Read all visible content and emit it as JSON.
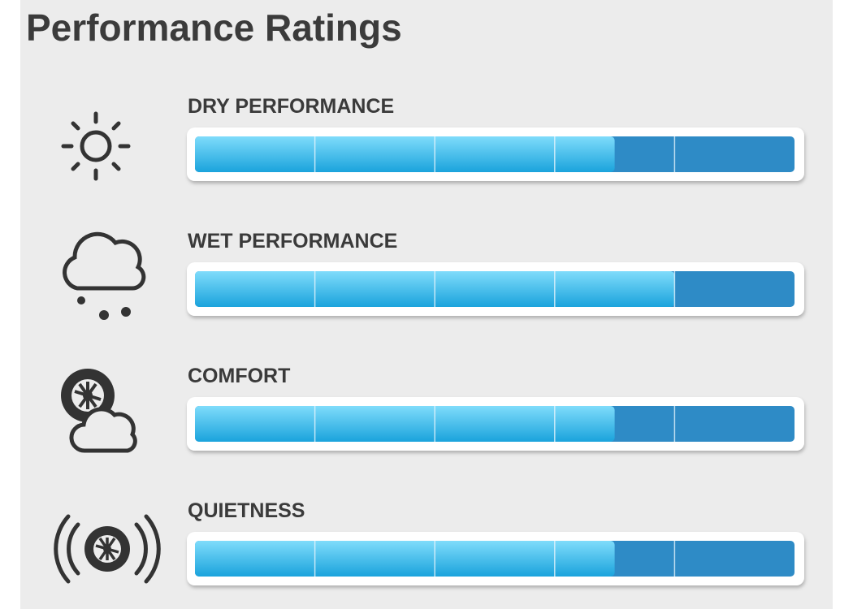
{
  "chart_data": {
    "type": "bar",
    "orientation": "horizontal",
    "title": "Performance Ratings",
    "categories": [
      "DRY PERFORMANCE",
      "WET PERFORMANCE",
      "COMFORT",
      "QUIETNESS"
    ],
    "values": [
      3.5,
      4,
      3.5,
      3.5
    ],
    "color": "#3cbdf0",
    "track_color": "#2e8bc6",
    "xlim": [
      0,
      5
    ],
    "xticks": [
      1,
      2,
      3,
      4
    ],
    "grid": true
  }
}
